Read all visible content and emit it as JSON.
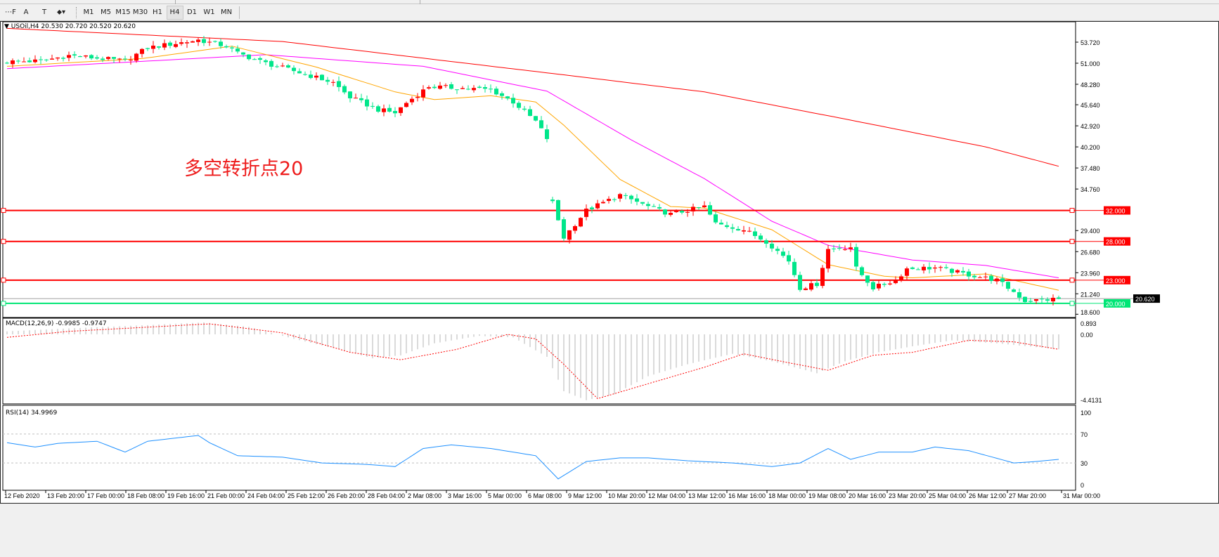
{
  "toolbar": {
    "tools": [
      {
        "name": "grid-f-icon",
        "glyph": "⋯F"
      },
      {
        "name": "text-a-icon",
        "glyph": "A"
      },
      {
        "name": "text-label-icon",
        "glyph": "T"
      },
      {
        "name": "arrows-icon",
        "glyph": "⬥▾"
      }
    ],
    "periods": [
      "M1",
      "M5",
      "M15",
      "M30",
      "H1",
      "H4",
      "D1",
      "W1",
      "MN"
    ],
    "active_period": "H4"
  },
  "chart": {
    "header": "USOil,H4  20.530 20.720 20.520 20.620",
    "annotation": "多空转折点20",
    "price_ticks": [
      "53.720",
      "51.000",
      "48.280",
      "45.640",
      "42.920",
      "40.200",
      "37.480",
      "34.760",
      "29.400",
      "26.680",
      "23.960",
      "21.240",
      "18.600"
    ],
    "levels": [
      {
        "label": "32.000",
        "value": 32.0,
        "color": "#ff0000"
      },
      {
        "label": "28.000",
        "value": 28.0,
        "color": "#ff0000"
      },
      {
        "label": "23.000",
        "value": 23.0,
        "color": "#ff0000"
      },
      {
        "label": "20.000",
        "value": 20.0,
        "color": "#00e676"
      }
    ],
    "current_price": {
      "label": "20.620",
      "value": 20.62
    },
    "colors": {
      "bull": "#ff0000",
      "bear": "#00e68a",
      "ma_fast": "#ffa500",
      "ma_mid": "#ff00ff",
      "ma_slow": "#ff0000"
    },
    "close_path": [
      [
        0,
        51.2
      ],
      [
        6,
        51.3
      ],
      [
        11,
        52.0
      ],
      [
        21,
        51.3
      ],
      [
        25,
        53.0
      ],
      [
        34,
        54.0
      ],
      [
        39,
        53.2
      ],
      [
        41,
        52.3
      ],
      [
        46,
        51.0
      ],
      [
        51,
        50.0
      ],
      [
        58,
        48.5
      ],
      [
        61,
        46.6
      ],
      [
        66,
        45.0
      ],
      [
        69,
        44.6
      ],
      [
        71,
        45.9
      ],
      [
        75,
        48.0
      ],
      [
        80,
        47.8
      ],
      [
        86,
        47.6
      ],
      [
        90,
        46.0
      ],
      [
        94,
        43.5
      ],
      [
        96,
        41.3
      ],
      [
        97,
        33.0
      ],
      [
        99,
        28.5
      ],
      [
        103,
        32.0
      ],
      [
        109,
        34.0
      ],
      [
        114,
        32.5
      ],
      [
        118,
        31.5
      ],
      [
        124,
        32.5
      ],
      [
        126,
        30.3
      ],
      [
        131,
        29.5
      ],
      [
        135,
        28.0
      ],
      [
        139,
        25.5
      ],
      [
        141,
        22.0
      ],
      [
        144,
        22.5
      ],
      [
        146,
        27.0
      ],
      [
        150,
        27.3
      ],
      [
        151,
        24.5
      ],
      [
        154,
        22.0
      ],
      [
        158,
        23.0
      ],
      [
        160,
        24.5
      ],
      [
        165,
        24.6
      ],
      [
        171,
        23.7
      ],
      [
        176,
        23.0
      ],
      [
        179,
        21.5
      ],
      [
        181,
        20.3
      ],
      [
        187,
        20.6
      ]
    ],
    "ma_fast": [
      [
        0,
        50.6
      ],
      [
        24,
        51.6
      ],
      [
        40,
        53.2
      ],
      [
        55,
        50.5
      ],
      [
        69,
        47.3
      ],
      [
        76,
        46.3
      ],
      [
        86,
        46.8
      ],
      [
        94,
        46.0
      ],
      [
        99,
        43.0
      ],
      [
        109,
        36.0
      ],
      [
        118,
        32.5
      ],
      [
        124,
        32.3
      ],
      [
        136,
        29.5
      ],
      [
        146,
        25.0
      ],
      [
        156,
        23.5
      ],
      [
        161,
        23.3
      ],
      [
        174,
        23.8
      ],
      [
        187,
        21.7
      ]
    ],
    "ma_mid": [
      [
        0,
        50.3
      ],
      [
        46,
        52.1
      ],
      [
        74,
        50.6
      ],
      [
        96,
        47.4
      ],
      [
        111,
        41.1
      ],
      [
        124,
        36.1
      ],
      [
        136,
        30.6
      ],
      [
        146,
        27.5
      ],
      [
        161,
        25.6
      ],
      [
        174,
        24.9
      ],
      [
        187,
        23.3
      ]
    ],
    "ma_slow": [
      [
        0,
        55.5
      ],
      [
        49,
        53.8
      ],
      [
        99,
        49.5
      ],
      [
        124,
        47.3
      ],
      [
        149,
        43.8
      ],
      [
        174,
        40.2
      ],
      [
        187,
        37.7
      ]
    ]
  },
  "macd": {
    "label": "MACD(12,26,9) -0.9985 -0.9747",
    "ticks": [
      "0.893",
      "0.00",
      "-4.4131"
    ],
    "histogram": [
      [
        0,
        0.2
      ],
      [
        11,
        0.4
      ],
      [
        24,
        0.6
      ],
      [
        35,
        0.8
      ],
      [
        43,
        0.5
      ],
      [
        51,
        -0.3
      ],
      [
        59,
        -1.0
      ],
      [
        65,
        -1.6
      ],
      [
        70,
        -1.4
      ],
      [
        76,
        -0.6
      ],
      [
        84,
        -0.1
      ],
      [
        90,
        -0.2
      ],
      [
        96,
        -1.5
      ],
      [
        99,
        -3.8
      ],
      [
        103,
        -4.4
      ],
      [
        108,
        -4.0
      ],
      [
        114,
        -2.8
      ],
      [
        121,
        -2.0
      ],
      [
        129,
        -1.3
      ],
      [
        136,
        -1.8
      ],
      [
        144,
        -2.6
      ],
      [
        149,
        -1.8
      ],
      [
        155,
        -1.2
      ],
      [
        161,
        -0.8
      ],
      [
        168,
        -0.4
      ],
      [
        176,
        -0.6
      ],
      [
        187,
        -1.0
      ]
    ],
    "signal": [
      [
        0,
        -0.2
      ],
      [
        11,
        0.2
      ],
      [
        36,
        0.7
      ],
      [
        49,
        0.1
      ],
      [
        61,
        -1.2
      ],
      [
        70,
        -1.7
      ],
      [
        80,
        -1.0
      ],
      [
        89,
        0.0
      ],
      [
        94,
        -0.3
      ],
      [
        99,
        -2.0
      ],
      [
        105,
        -4.3
      ],
      [
        114,
        -3.3
      ],
      [
        124,
        -2.2
      ],
      [
        131,
        -1.3
      ],
      [
        139,
        -1.9
      ],
      [
        146,
        -2.4
      ],
      [
        154,
        -1.4
      ],
      [
        161,
        -1.2
      ],
      [
        171,
        -0.4
      ],
      [
        179,
        -0.5
      ],
      [
        187,
        -1.0
      ]
    ]
  },
  "rsi": {
    "label": "RSI(14) 34.9969",
    "ticks": [
      "100",
      "70",
      "30",
      "0"
    ],
    "values": [
      [
        0,
        58
      ],
      [
        5,
        52
      ],
      [
        9,
        57
      ],
      [
        16,
        60
      ],
      [
        21,
        45
      ],
      [
        25,
        60
      ],
      [
        34,
        68
      ],
      [
        36,
        58
      ],
      [
        41,
        40
      ],
      [
        49,
        38
      ],
      [
        56,
        30
      ],
      [
        64,
        28
      ],
      [
        69,
        25
      ],
      [
        74,
        50
      ],
      [
        79,
        55
      ],
      [
        86,
        50
      ],
      [
        94,
        40
      ],
      [
        98,
        8
      ],
      [
        103,
        32
      ],
      [
        109,
        37
      ],
      [
        114,
        37
      ],
      [
        121,
        33
      ],
      [
        129,
        30
      ],
      [
        136,
        25
      ],
      [
        141,
        30
      ],
      [
        146,
        50
      ],
      [
        150,
        35
      ],
      [
        155,
        45
      ],
      [
        161,
        45
      ],
      [
        165,
        52
      ],
      [
        171,
        47
      ],
      [
        179,
        30
      ],
      [
        183,
        32
      ],
      [
        187,
        35
      ]
    ]
  },
  "time_axis": [
    "12 Feb 2020",
    "13 Feb 20:00",
    "17 Feb 00:00",
    "18 Feb 08:00",
    "19 Feb 16:00",
    "21 Feb 00:00",
    "24 Feb 04:00",
    "25 Feb 12:00",
    "26 Feb 20:00",
    "28 Feb 04:00",
    "2 Mar 08:00",
    "3 Mar 16:00",
    "5 Mar 00:00",
    "6 Mar 08:00",
    "9 Mar 12:00",
    "10 Mar 20:00",
    "12 Mar 04:00",
    "13 Mar 12:00",
    "16 Mar 16:00",
    "18 Mar 00:00",
    "19 Mar 08:00",
    "20 Mar 16:00",
    "23 Mar 20:00",
    "25 Mar 04:00",
    "26 Mar 12:00",
    "27 Mar 20:00",
    "31 Mar 00:00"
  ]
}
